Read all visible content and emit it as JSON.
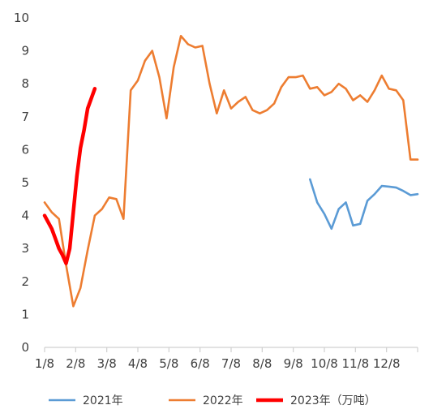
{
  "chart_data": {
    "type": "line",
    "title": "",
    "xlabel": "",
    "ylabel": "",
    "ylim": [
      0,
      10
    ],
    "yticks": [
      0,
      1,
      2,
      3,
      4,
      5,
      6,
      7,
      8,
      9,
      10
    ],
    "x_tick_labels": [
      "1/8",
      "2/8",
      "3/8",
      "4/8",
      "5/8",
      "6/8",
      "7/8",
      "8/8",
      "9/8",
      "10/8",
      "11/8",
      "12/8"
    ],
    "x_unit": "week of year (week 1 = 1/8)",
    "xlim": [
      1,
      53
    ],
    "grid": false,
    "legend_position": "bottom",
    "series": [
      {
        "name": "2021年",
        "color": "#5B9BD5",
        "x": [
          38,
          39,
          40,
          41,
          42,
          43,
          44,
          45,
          46,
          47,
          48,
          49,
          50,
          51,
          52,
          53
        ],
        "y": [
          5.1,
          4.4,
          4.05,
          3.6,
          4.2,
          4.4,
          3.7,
          3.75,
          4.45,
          4.65,
          4.9,
          4.88,
          4.85,
          4.75,
          4.62,
          4.65
        ]
      },
      {
        "name": "2022年",
        "color": "#ED7D31",
        "x": [
          1,
          2,
          3,
          4,
          5,
          6,
          7,
          8,
          9,
          10,
          11,
          12,
          13,
          14,
          15,
          16,
          17,
          18,
          19,
          20,
          21,
          22,
          23,
          24,
          25,
          26,
          27,
          28,
          29,
          30,
          31,
          32,
          33,
          34,
          35,
          36,
          37,
          38,
          39,
          40,
          41,
          42,
          43,
          44,
          45,
          46,
          47,
          48,
          49,
          50,
          51,
          52,
          53
        ],
        "y": [
          4.4,
          4.1,
          3.9,
          2.5,
          1.25,
          1.8,
          2.95,
          4.0,
          4.2,
          4.55,
          4.5,
          3.9,
          7.8,
          8.1,
          8.7,
          9.0,
          8.2,
          6.95,
          8.5,
          9.45,
          9.2,
          9.1,
          9.15,
          8.0,
          7.1,
          7.8,
          7.25,
          7.45,
          7.6,
          7.2,
          7.1,
          7.2,
          7.4,
          7.9,
          8.2,
          8.2,
          8.25,
          7.85,
          7.9,
          7.65,
          7.75,
          8.0,
          7.85,
          7.5,
          7.65,
          7.45,
          7.8,
          8.25,
          7.85,
          7.8,
          7.5,
          5.7,
          5.7
        ]
      },
      {
        "name": "2023年（万吨）",
        "color": "#FF0000",
        "x": [
          1,
          1.5,
          2,
          2.5,
          3,
          3.5,
          4,
          4.5,
          5,
          5.5,
          6,
          6.5,
          7,
          7.5,
          8
        ],
        "y": [
          4.0,
          3.8,
          3.6,
          3.3,
          3.0,
          2.8,
          2.55,
          3.0,
          4.1,
          5.2,
          6.05,
          6.6,
          7.25,
          7.55,
          7.85
        ]
      }
    ]
  }
}
